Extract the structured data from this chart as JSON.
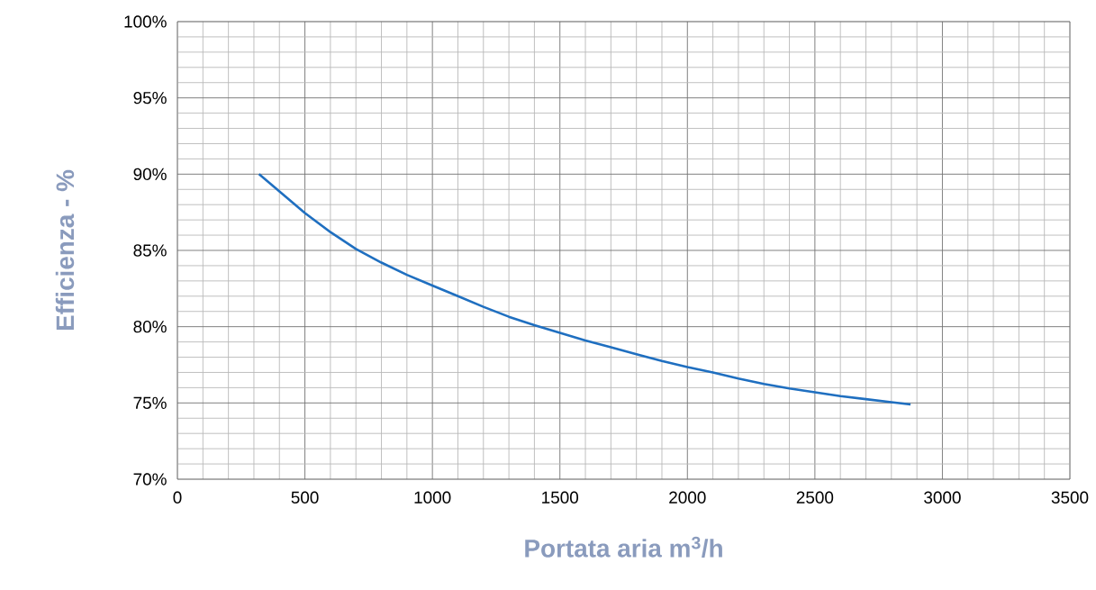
{
  "chart_data": {
    "type": "line",
    "xlabel": "Portata aria m$^{3}$/h",
    "ylabel": "Efficienza  - %",
    "x": [
      320,
      500,
      600,
      700,
      800,
      900,
      1000,
      1100,
      1200,
      1300,
      1400,
      1500,
      1600,
      1700,
      1800,
      1900,
      2000,
      2100,
      2200,
      2300,
      2400,
      2500,
      2600,
      2700,
      2800,
      2875
    ],
    "series": [
      {
        "color": "#1f6fc0",
        "values": [
          90,
          87.45,
          86.2,
          85.1,
          84.2,
          83.4,
          82.7,
          82.0,
          81.3,
          80.65,
          80.1,
          79.6,
          79.1,
          78.65,
          78.2,
          77.75,
          77.35,
          77.0,
          76.6,
          76.25,
          75.95,
          75.7,
          75.45,
          75.25,
          75.05,
          74.9
        ]
      }
    ],
    "xlim": [
      0,
      3500
    ],
    "ylim": [
      70,
      100
    ],
    "xticks": [
      0,
      500,
      1000,
      1500,
      2000,
      2500,
      3000,
      3500
    ],
    "yticks": [
      {
        "value": 70,
        "label": "70%"
      },
      {
        "value": 75,
        "label": "75%"
      },
      {
        "value": 80,
        "label": "80%"
      },
      {
        "value": 85,
        "label": "85%"
      },
      {
        "value": 90,
        "label": "90%"
      },
      {
        "value": 95,
        "label": "95%"
      },
      {
        "value": 100,
        "label": "100%"
      }
    ],
    "grid": true,
    "marker": "none",
    "line_style": "solid"
  }
}
